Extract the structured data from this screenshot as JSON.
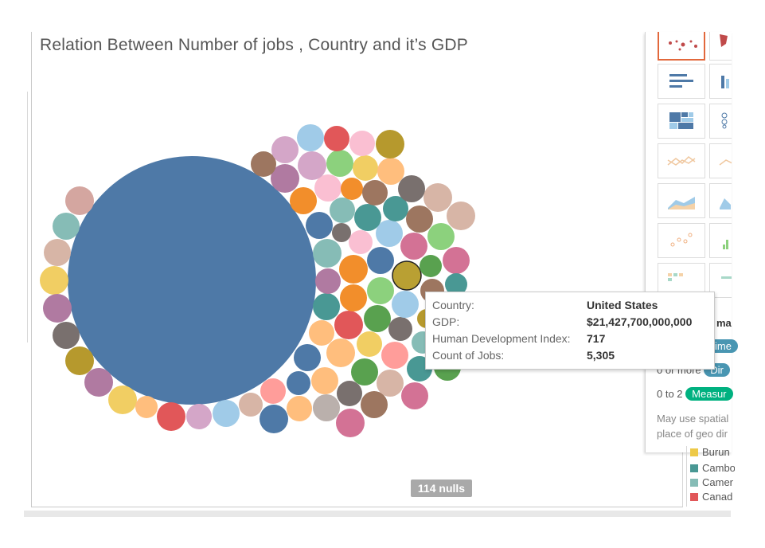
{
  "title": "Relation Between Number of jobs , Country and it’s GDP",
  "nulls_badge": "114 nulls",
  "tooltip": {
    "rows": [
      {
        "label": "Country:",
        "value": "United States"
      },
      {
        "label": "GDP:",
        "value": "$21,427,700,000,000"
      },
      {
        "label": "Human Development Index:",
        "value": "717"
      },
      {
        "label": "Count of Jobs:",
        "value": "5,305"
      }
    ]
  },
  "show_me": {
    "label_fragment": "ma",
    "requirements": [
      {
        "prefix": "",
        "pill": "ime",
        "pill_color": "#4996b2"
      },
      {
        "prefix": "0 or more",
        "pill": "Dir",
        "pill_color": "#4996b2"
      },
      {
        "prefix": "0 to 2",
        "pill": "Measur",
        "pill_color": "#00b180"
      }
    ],
    "hint_line1": "May use spatial",
    "hint_line2": "place of geo dir"
  },
  "legend": {
    "items": [
      {
        "label": "Burun",
        "color": "#edc948"
      },
      {
        "label": "Cambo",
        "color": "#499894"
      },
      {
        "label": "Camer",
        "color": "#86bcb6"
      },
      {
        "label": "Canad",
        "color": "#e15759"
      }
    ]
  },
  "colors": {
    "primary_bubble": "#4e79a7",
    "highlight_bubble": "#b9a033"
  }
}
